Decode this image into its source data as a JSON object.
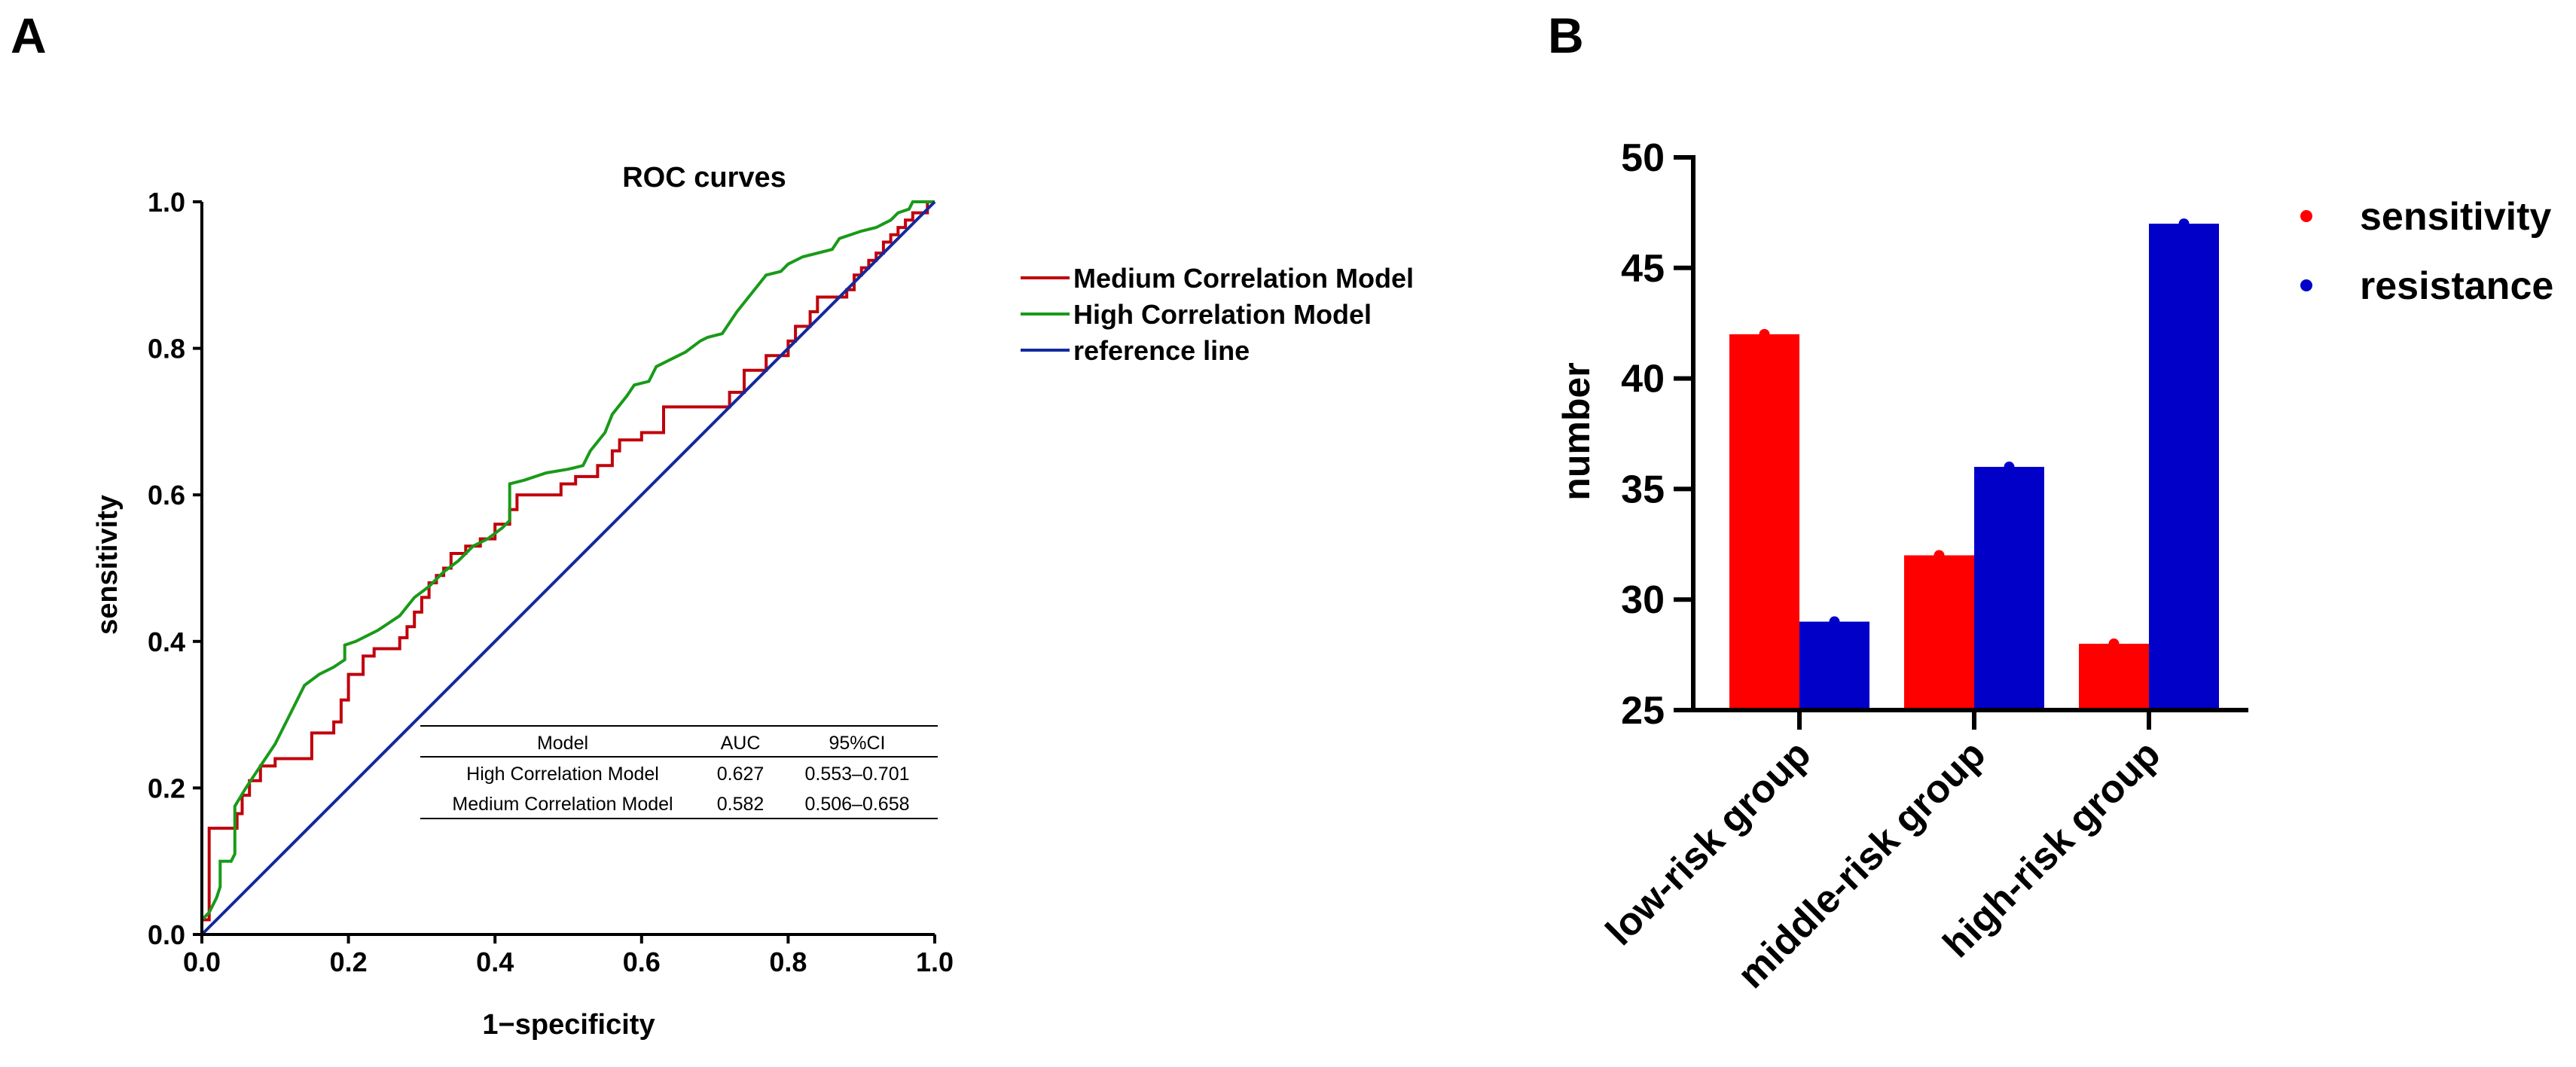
{
  "panels": {
    "a": {
      "letter": "A"
    },
    "b": {
      "letter": "B"
    }
  },
  "chart_data": [
    {
      "type": "line",
      "title": "ROC curves",
      "xlabel": "1−specificity",
      "ylabel": "sensitivity",
      "xlim": [
        0,
        1
      ],
      "ylim": [
        0,
        1
      ],
      "x_ticks": [
        "0.0",
        "0.2",
        "0.4",
        "0.6",
        "0.8",
        "1.0"
      ],
      "y_ticks": [
        "0.0",
        "0.2",
        "0.4",
        "0.6",
        "0.8",
        "1.0"
      ],
      "grid": false,
      "legend_position": "right",
      "series": [
        {
          "name": "Medium Correlation Model",
          "color": "#c0000b",
          "points": [
            [
              0,
              0
            ],
            [
              0,
              0.02
            ],
            [
              0.01,
              0.02
            ],
            [
              0.01,
              0.145
            ],
            [
              0.048,
              0.145
            ],
            [
              0.048,
              0.165
            ],
            [
              0.055,
              0.165
            ],
            [
              0.055,
              0.19
            ],
            [
              0.065,
              0.19
            ],
            [
              0.065,
              0.21
            ],
            [
              0.08,
              0.21
            ],
            [
              0.08,
              0.23
            ],
            [
              0.1,
              0.23
            ],
            [
              0.1,
              0.24
            ],
            [
              0.15,
              0.24
            ],
            [
              0.15,
              0.275
            ],
            [
              0.18,
              0.275
            ],
            [
              0.18,
              0.29
            ],
            [
              0.19,
              0.29
            ],
            [
              0.19,
              0.32
            ],
            [
              0.2,
              0.32
            ],
            [
              0.2,
              0.355
            ],
            [
              0.22,
              0.355
            ],
            [
              0.22,
              0.38
            ],
            [
              0.235,
              0.38
            ],
            [
              0.235,
              0.39
            ],
            [
              0.27,
              0.39
            ],
            [
              0.27,
              0.405
            ],
            [
              0.28,
              0.405
            ],
            [
              0.28,
              0.42
            ],
            [
              0.29,
              0.42
            ],
            [
              0.29,
              0.44
            ],
            [
              0.3,
              0.44
            ],
            [
              0.3,
              0.46
            ],
            [
              0.31,
              0.46
            ],
            [
              0.31,
              0.48
            ],
            [
              0.32,
              0.48
            ],
            [
              0.32,
              0.49
            ],
            [
              0.33,
              0.49
            ],
            [
              0.33,
              0.5
            ],
            [
              0.34,
              0.5
            ],
            [
              0.34,
              0.52
            ],
            [
              0.36,
              0.52
            ],
            [
              0.36,
              0.53
            ],
            [
              0.38,
              0.53
            ],
            [
              0.38,
              0.54
            ],
            [
              0.4,
              0.54
            ],
            [
              0.4,
              0.56
            ],
            [
              0.42,
              0.56
            ],
            [
              0.42,
              0.58
            ],
            [
              0.43,
              0.58
            ],
            [
              0.43,
              0.6
            ],
            [
              0.49,
              0.6
            ],
            [
              0.49,
              0.615
            ],
            [
              0.51,
              0.615
            ],
            [
              0.51,
              0.625
            ],
            [
              0.54,
              0.625
            ],
            [
              0.54,
              0.64
            ],
            [
              0.56,
              0.64
            ],
            [
              0.56,
              0.66
            ],
            [
              0.57,
              0.66
            ],
            [
              0.57,
              0.675
            ],
            [
              0.6,
              0.675
            ],
            [
              0.6,
              0.685
            ],
            [
              0.63,
              0.685
            ],
            [
              0.63,
              0.72
            ],
            [
              0.72,
              0.72
            ],
            [
              0.72,
              0.74
            ],
            [
              0.74,
              0.74
            ],
            [
              0.74,
              0.77
            ],
            [
              0.77,
              0.77
            ],
            [
              0.77,
              0.79
            ],
            [
              0.8,
              0.79
            ],
            [
              0.8,
              0.81
            ],
            [
              0.81,
              0.81
            ],
            [
              0.81,
              0.83
            ],
            [
              0.83,
              0.83
            ],
            [
              0.83,
              0.85
            ],
            [
              0.84,
              0.85
            ],
            [
              0.84,
              0.87
            ],
            [
              0.88,
              0.87
            ],
            [
              0.88,
              0.88
            ],
            [
              0.89,
              0.88
            ],
            [
              0.89,
              0.9
            ],
            [
              0.9,
              0.9
            ],
            [
              0.9,
              0.91
            ],
            [
              0.91,
              0.91
            ],
            [
              0.91,
              0.92
            ],
            [
              0.92,
              0.92
            ],
            [
              0.92,
              0.93
            ],
            [
              0.93,
              0.93
            ],
            [
              0.93,
              0.945
            ],
            [
              0.94,
              0.945
            ],
            [
              0.94,
              0.955
            ],
            [
              0.95,
              0.955
            ],
            [
              0.95,
              0.965
            ],
            [
              0.96,
              0.965
            ],
            [
              0.96,
              0.975
            ],
            [
              0.97,
              0.975
            ],
            [
              0.97,
              0.985
            ],
            [
              0.99,
              0.985
            ],
            [
              0.99,
              1.0
            ],
            [
              1.0,
              1.0
            ]
          ]
        },
        {
          "name": "High Correlation Model",
          "color": "#199a19",
          "points": [
            [
              0,
              0
            ],
            [
              0,
              0.02
            ],
            [
              0.01,
              0.03
            ],
            [
              0.02,
              0.05
            ],
            [
              0.025,
              0.065
            ],
            [
              0.025,
              0.1
            ],
            [
              0.04,
              0.1
            ],
            [
              0.045,
              0.11
            ],
            [
              0.045,
              0.175
            ],
            [
              0.06,
              0.2
            ],
            [
              0.08,
              0.23
            ],
            [
              0.1,
              0.26
            ],
            [
              0.12,
              0.3
            ],
            [
              0.14,
              0.34
            ],
            [
              0.16,
              0.355
            ],
            [
              0.18,
              0.365
            ],
            [
              0.195,
              0.375
            ],
            [
              0.195,
              0.395
            ],
            [
              0.21,
              0.4
            ],
            [
              0.24,
              0.415
            ],
            [
              0.27,
              0.435
            ],
            [
              0.29,
              0.46
            ],
            [
              0.31,
              0.475
            ],
            [
              0.33,
              0.495
            ],
            [
              0.35,
              0.51
            ],
            [
              0.37,
              0.53
            ],
            [
              0.39,
              0.54
            ],
            [
              0.41,
              0.555
            ],
            [
              0.42,
              0.565
            ],
            [
              0.42,
              0.615
            ],
            [
              0.44,
              0.62
            ],
            [
              0.47,
              0.63
            ],
            [
              0.5,
              0.635
            ],
            [
              0.52,
              0.64
            ],
            [
              0.53,
              0.66
            ],
            [
              0.55,
              0.685
            ],
            [
              0.56,
              0.71
            ],
            [
              0.58,
              0.735
            ],
            [
              0.59,
              0.75
            ],
            [
              0.61,
              0.755
            ],
            [
              0.62,
              0.775
            ],
            [
              0.64,
              0.785
            ],
            [
              0.66,
              0.795
            ],
            [
              0.68,
              0.81
            ],
            [
              0.69,
              0.815
            ],
            [
              0.71,
              0.82
            ],
            [
              0.73,
              0.85
            ],
            [
              0.75,
              0.875
            ],
            [
              0.77,
              0.9
            ],
            [
              0.79,
              0.905
            ],
            [
              0.8,
              0.915
            ],
            [
              0.82,
              0.925
            ],
            [
              0.86,
              0.935
            ],
            [
              0.87,
              0.95
            ],
            [
              0.9,
              0.96
            ],
            [
              0.92,
              0.965
            ],
            [
              0.93,
              0.97
            ],
            [
              0.94,
              0.975
            ],
            [
              0.95,
              0.985
            ],
            [
              0.965,
              0.99
            ],
            [
              0.97,
              1.0
            ],
            [
              1.0,
              1.0
            ]
          ]
        },
        {
          "name": "reference line",
          "color": "#12299e",
          "points": [
            [
              0,
              0
            ],
            [
              1,
              1
            ]
          ]
        }
      ],
      "table": {
        "columns": [
          "Model",
          "AUC",
          "95%CI"
        ],
        "rows": [
          [
            "High Correlation Model",
            "0.627",
            "0.553–0.701"
          ],
          [
            "Medium Correlation Model",
            "0.582",
            "0.506–0.658"
          ]
        ]
      }
    },
    {
      "type": "bar",
      "ylabel": "number",
      "ylim": [
        25,
        50
      ],
      "y_ticks": [
        "25",
        "30",
        "35",
        "40",
        "45",
        "50"
      ],
      "categories": [
        "low-risk group",
        "middle-risk group",
        "high-risk group"
      ],
      "grid": false,
      "legend_position": "top-right",
      "series": [
        {
          "name": "sensitivity",
          "color": "#ff0000",
          "values": [
            42,
            32,
            28
          ]
        },
        {
          "name": "resistance",
          "color": "#0000c8",
          "values": [
            29,
            36,
            47
          ]
        }
      ]
    }
  ]
}
